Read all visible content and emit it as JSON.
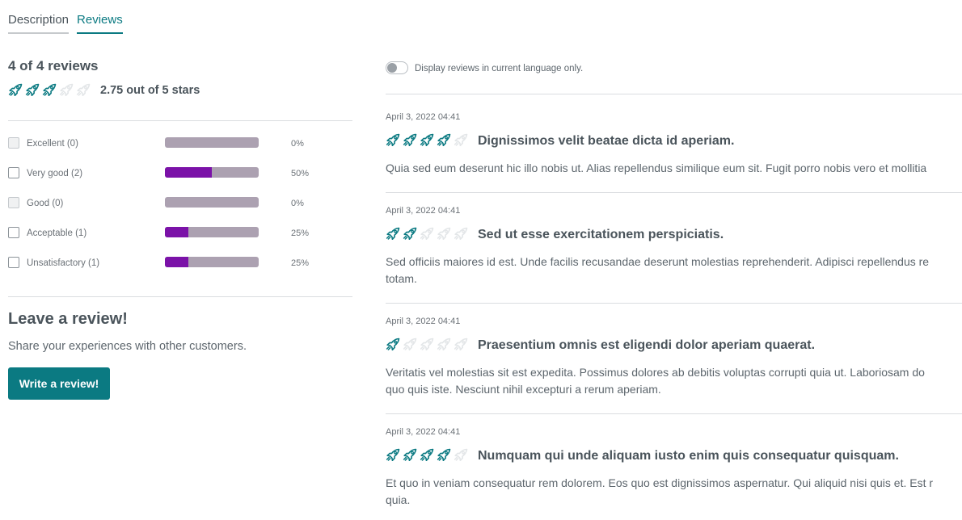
{
  "tabs": [
    {
      "label": "Description",
      "active": false
    },
    {
      "label": "Reviews",
      "active": true
    }
  ],
  "summary": {
    "title": "4 of 4 reviews",
    "rating": 2.75,
    "score_text": "2.75 out of 5 stars"
  },
  "filters": [
    {
      "label": "Excellent (0)",
      "percent": 0,
      "percent_text": "0%",
      "enabled": false
    },
    {
      "label": "Very good (2)",
      "percent": 50,
      "percent_text": "50%",
      "enabled": true
    },
    {
      "label": "Good (0)",
      "percent": 0,
      "percent_text": "0%",
      "enabled": false
    },
    {
      "label": "Acceptable (1)",
      "percent": 25,
      "percent_text": "25%",
      "enabled": true
    },
    {
      "label": "Unsatisfactory (1)",
      "percent": 25,
      "percent_text": "25%",
      "enabled": true
    }
  ],
  "leave_review": {
    "title": "Leave a review!",
    "text": "Share your experiences with other customers.",
    "button_label": "Write a review!"
  },
  "language_toggle": {
    "label": "Display reviews in current language only.",
    "on": false
  },
  "reviews": [
    {
      "date": "April 3, 2022 04:41",
      "rating": 4,
      "headline": "Dignissimos velit beatae dicta id aperiam.",
      "body_lines": [
        "Quia sed eum deserunt hic illo nobis ut. Alias repellendus similique eum sit. Fugit porro nobis vero et mollitia"
      ]
    },
    {
      "date": "April 3, 2022 04:41",
      "rating": 2,
      "headline": "Sed ut esse exercitationem perspiciatis.",
      "body_lines": [
        "Sed officiis maiores id est. Unde facilis recusandae deserunt molestias reprehenderit. Adipisci repellendus re",
        "totam."
      ]
    },
    {
      "date": "April 3, 2022 04:41",
      "rating": 1,
      "headline": "Praesentium omnis est eligendi dolor aperiam quaerat.",
      "body_lines": [
        "Veritatis vel molestias sit est expedita. Possimus dolores ab debitis voluptas corrupti quia ut. Laboriosam do",
        "quo quis iste. Nesciunt nihil excepturi a rerum aperiam."
      ]
    },
    {
      "date": "April 3, 2022 04:41",
      "rating": 4,
      "headline": "Numquam qui unde aliquam iusto enim quis consequatur quisquam.",
      "body_lines": [
        "Et quo in veniam consequatur rem dolorem. Eos quo est dignissimos aspernatur. Qui aliquid nisi quis et. Est r",
        "quia."
      ]
    }
  ],
  "colors": {
    "accent": "#0b7a82",
    "bar_fill": "#7b12a8",
    "bar_track": "#aca1b1",
    "star_empty": "#e3e6e8"
  },
  "icons": {
    "rating_star": "rocket-icon"
  }
}
